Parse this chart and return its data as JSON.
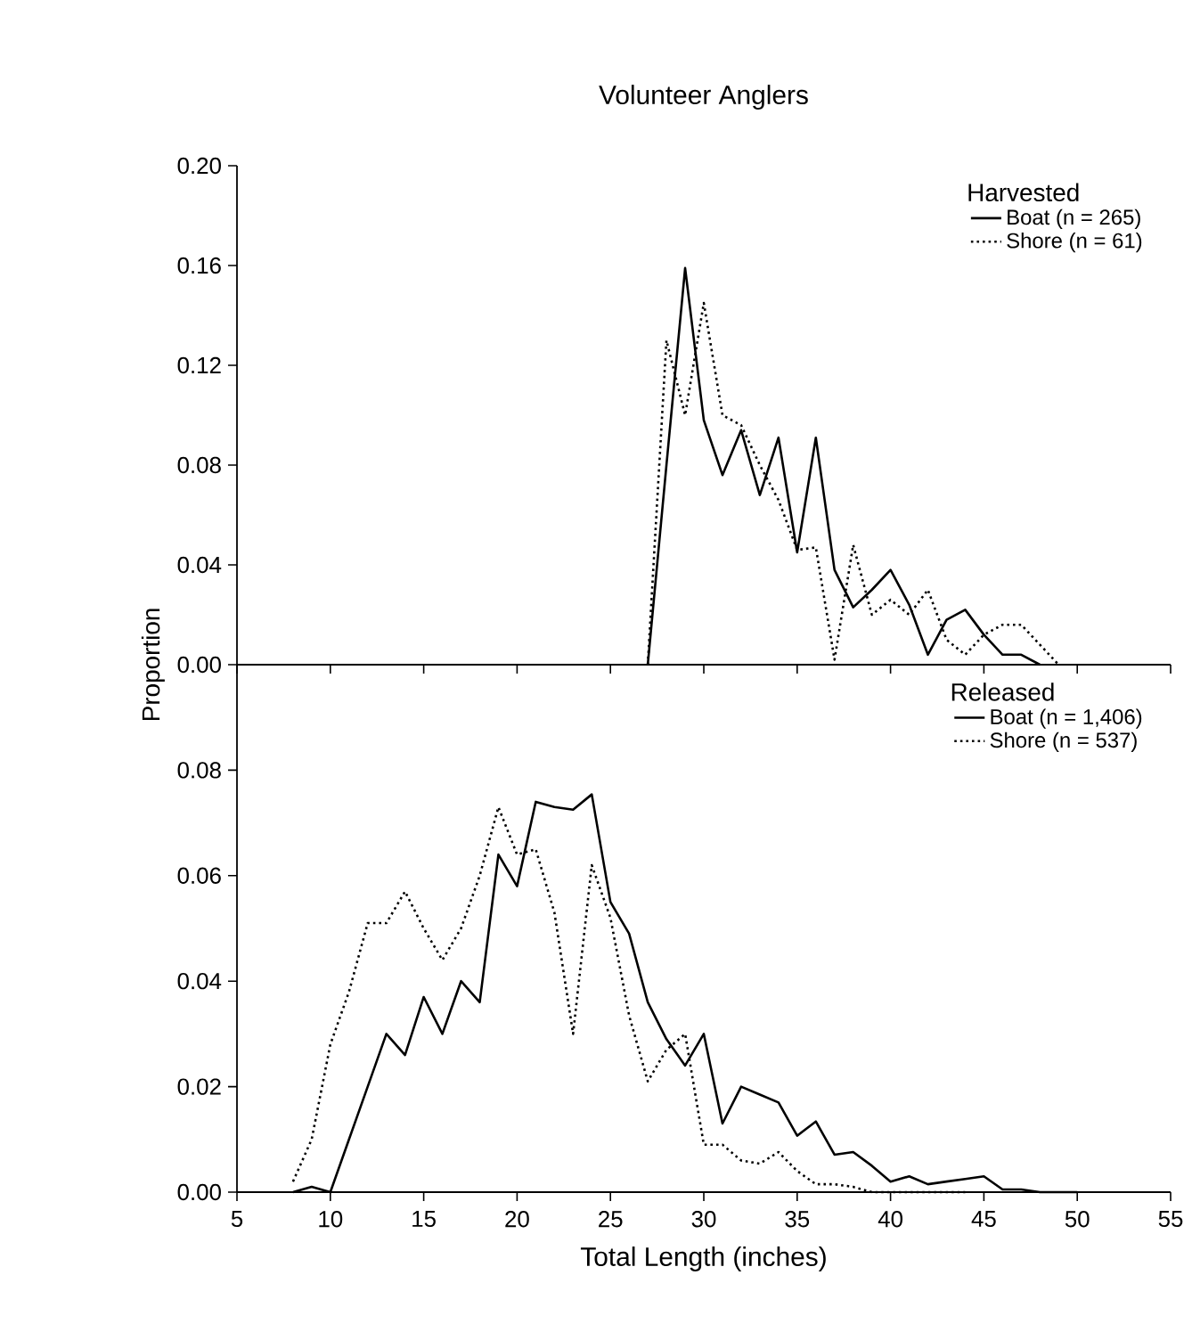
{
  "chart_data": [
    {
      "type": "line",
      "title": "Volunteer Anglers",
      "ylabel": "Proportion",
      "legend_title": "Harvested",
      "legend": "top right",
      "tick_labels": "y",
      "xlim": [
        5,
        55
      ],
      "xticks": [
        5,
        10,
        15,
        20,
        25,
        30,
        35,
        40,
        45,
        50,
        55
      ],
      "ylim": [
        0,
        0.2
      ],
      "yticks": [
        {
          "value": 0,
          "label": "0.00"
        },
        {
          "value": 0.04,
          "label": "0.04"
        },
        {
          "value": 0.08,
          "label": "0.08"
        },
        {
          "value": 0.12,
          "label": "0.12"
        },
        {
          "value": 0.16,
          "label": "0.16"
        },
        {
          "value": 0.2,
          "label": "0.20"
        }
      ],
      "series": [
        {
          "name": "Boat (n = 265)",
          "color": "#000000",
          "line_style": "solid",
          "x": [
            27,
            28,
            29,
            30,
            31,
            32,
            33,
            34,
            35,
            36,
            37,
            38,
            39,
            40,
            41,
            42,
            43,
            44,
            45,
            46,
            47,
            48
          ],
          "values": [
            0,
            0.08,
            0.159,
            0.098,
            0.076,
            0.094,
            0.068,
            0.091,
            0.045,
            0.091,
            0.038,
            0.023,
            0.03,
            0.038,
            0.024,
            0.004,
            0.018,
            0.022,
            0.012,
            0.004,
            0.004,
            0
          ]
        },
        {
          "name": "Shore (n = 61)",
          "color": "#000000",
          "line_style": "dotted",
          "x": [
            27,
            28,
            29,
            30,
            31,
            32,
            33,
            34,
            35,
            36,
            37,
            38,
            39,
            40,
            41,
            42,
            43,
            44,
            45,
            46,
            47,
            48,
            49
          ],
          "values": [
            0,
            0.13,
            0.1,
            0.145,
            0.1,
            0.096,
            0.08,
            0.066,
            0.046,
            0.047,
            0.002,
            0.048,
            0.02,
            0.026,
            0.02,
            0.03,
            0.01,
            0.004,
            0.012,
            0.016,
            0.016,
            0.008,
            0
          ]
        }
      ]
    },
    {
      "type": "line",
      "xlabel": "Total Length (inches)",
      "legend_title": "Released",
      "legend": "top right",
      "xlim": [
        5,
        55
      ],
      "xticks": [
        5,
        10,
        15,
        20,
        25,
        30,
        35,
        40,
        45,
        50,
        55
      ],
      "ylim": [
        0,
        0.1
      ],
      "yticks": [
        {
          "value": 0,
          "label": "0.00"
        },
        {
          "value": 0.02,
          "label": "0.02"
        },
        {
          "value": 0.04,
          "label": "0.04"
        },
        {
          "value": 0.06,
          "label": "0.06"
        },
        {
          "value": 0.08,
          "label": "0.08"
        }
      ],
      "series": [
        {
          "name": "Boat (n = 1,406)",
          "color": "#000000",
          "line_style": "solid",
          "x": [
            8,
            9,
            10,
            11,
            12,
            13,
            14,
            15,
            16,
            17,
            18,
            19,
            20,
            21,
            22,
            23,
            24,
            25,
            26,
            27,
            28,
            29,
            30,
            31,
            32,
            33,
            34,
            35,
            36,
            37,
            38,
            39,
            40,
            41,
            42,
            43,
            44,
            45,
            46,
            47,
            48,
            49,
            50
          ],
          "values": [
            0,
            0.001,
            0,
            0.01,
            0.02,
            0.03,
            0.026,
            0.037,
            0.03,
            0.04,
            0.036,
            0.064,
            0.058,
            0.074,
            0.073,
            0.0725,
            0.0754,
            0.055,
            0.049,
            0.036,
            0.029,
            0.024,
            0.03,
            0.013,
            0.02,
            0.0185,
            0.017,
            0.0107,
            0.0134,
            0.0071,
            0.0076,
            0.005,
            0.002,
            0.003,
            0.0015,
            0.002,
            0.0025,
            0.003,
            0.0005,
            0.0005,
            0,
            0,
            0
          ]
        },
        {
          "name": "Shore (n = 537)",
          "color": "#000000",
          "line_style": "dotted",
          "x": [
            8,
            9,
            10,
            11,
            12,
            13,
            14,
            15,
            16,
            17,
            18,
            19,
            20,
            21,
            22,
            23,
            24,
            25,
            26,
            27,
            28,
            29,
            30,
            31,
            32,
            33,
            34,
            35,
            36,
            37,
            38,
            39,
            40,
            41,
            42,
            43,
            44
          ],
          "values": [
            0.002,
            0.01,
            0.028,
            0.038,
            0.051,
            0.051,
            0.057,
            0.05,
            0.044,
            0.05,
            0.06,
            0.073,
            0.064,
            0.065,
            0.053,
            0.03,
            0.062,
            0.052,
            0.0335,
            0.021,
            0.027,
            0.03,
            0.009,
            0.009,
            0.006,
            0.0054,
            0.0076,
            0.004,
            0.0015,
            0.0015,
            0.001,
            0,
            0,
            0,
            0,
            0,
            0
          ]
        }
      ]
    }
  ]
}
